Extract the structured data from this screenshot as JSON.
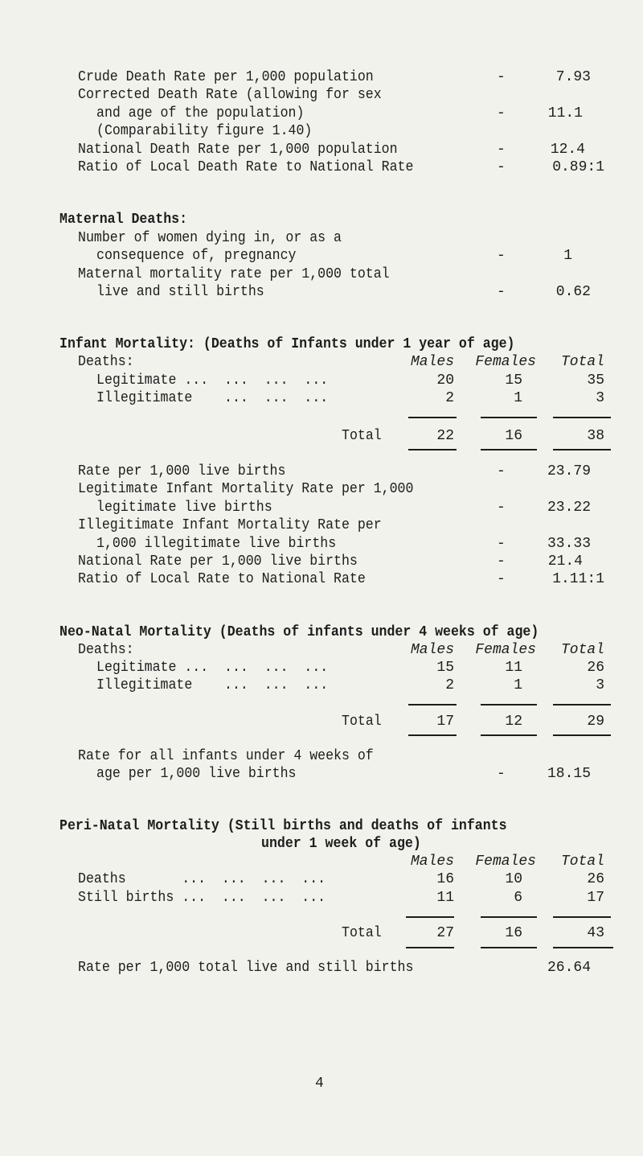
{
  "death_rates": {
    "crude": {
      "label": "Crude Death Rate per 1,000 population",
      "value": "7.93"
    },
    "corrected": {
      "label1": "Corrected Death Rate (allowing for sex",
      "label2": "and age of the population)",
      "label3": "(Comparability figure 1.40)",
      "value": "11.1"
    },
    "national": {
      "label": "National Death Rate per 1,000 population",
      "value": "12.4"
    },
    "ratio": {
      "label": "Ratio of Local Death Rate to National Rate",
      "value": "0.89:1"
    }
  },
  "maternal": {
    "heading": "Maternal Deaths:",
    "number": {
      "label1": "Number of women dying in, or as a",
      "label2": "consequence of, pregnancy",
      "value": "1"
    },
    "rate": {
      "label1": "Maternal mortality rate per 1,000 total",
      "label2": "live and still births",
      "value": "0.62"
    }
  },
  "dash": "-",
  "columns": {
    "males": "Males",
    "females": "Females",
    "total": "Total"
  },
  "infant": {
    "heading": "Infant Mortality: (Deaths of Infants under 1 year of age)",
    "deaths_label": "Deaths:",
    "rows": [
      {
        "label": "Legitimate ...  ...  ...  ...",
        "males": "20",
        "females": "15",
        "total": "35"
      },
      {
        "label": "Illegitimate    ...  ...  ...",
        "males": "2",
        "females": "1",
        "total": "3"
      }
    ],
    "total_row": {
      "label": "Total",
      "males": "22",
      "females": "16",
      "total": "38"
    },
    "stats": [
      {
        "lines": [
          "Rate per 1,000 live births"
        ],
        "value": "23.79"
      },
      {
        "lines": [
          "Legitimate Infant Mortality Rate per 1,000",
          "legitimate live births"
        ],
        "value": "23.22"
      },
      {
        "lines": [
          "Illegitimate Infant Mortality Rate per",
          "1,000 illegitimate live births"
        ],
        "value": "33.33"
      },
      {
        "lines": [
          "National Rate per 1,000 live births"
        ],
        "value": "21.4"
      },
      {
        "lines": [
          "Ratio of Local Rate to National Rate"
        ],
        "value": "1.11:1"
      }
    ]
  },
  "neonatal": {
    "heading": "Neo-Natal Mortality (Deaths of infants under 4 weeks of age)",
    "deaths_label": "Deaths:",
    "rows": [
      {
        "label": "Legitimate ...  ...  ...  ...",
        "males": "15",
        "females": "11",
        "total": "26"
      },
      {
        "label": "Illegitimate    ...  ...  ...",
        "males": "2",
        "females": "1",
        "total": "3"
      }
    ],
    "total_row": {
      "label": "Total",
      "males": "17",
      "females": "12",
      "total": "29"
    },
    "rate": {
      "label1": "Rate for all infants under 4 weeks of",
      "label2": "age per 1,000 live births",
      "value": "18.15"
    }
  },
  "perinatal": {
    "heading1": "Peri-Natal Mortality (Still births and deaths of infants",
    "heading2": "under 1 week of age)",
    "rows": [
      {
        "label": "Deaths       ...  ...  ...  ...",
        "males": "16",
        "females": "10",
        "total": "26"
      },
      {
        "label": "Still births ...  ...  ...  ...",
        "males": "11",
        "females": "6",
        "total": "17"
      }
    ],
    "total_row": {
      "label": "Total",
      "males": "27",
      "females": "16",
      "total": "43"
    },
    "rate": {
      "label": "Rate per 1,000 total live and still births",
      "value": "26.64"
    }
  },
  "page_number": "4"
}
